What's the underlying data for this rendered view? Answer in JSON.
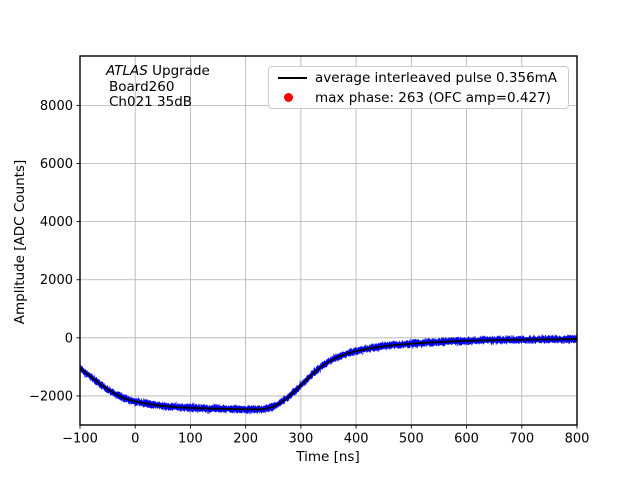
{
  "figure": {
    "background": "#ffffff"
  },
  "annotation": {
    "experiment": "ATLAS",
    "line1_rest": " Upgrade",
    "line2": "Board260",
    "line3": "Ch021 35dB"
  },
  "chart_data": {
    "type": "line",
    "title": "",
    "xlabel": "Time [ns]",
    "ylabel": "Amplitude [ADC Counts]",
    "xlim": [
      -100,
      800
    ],
    "ylim": [
      -3000,
      9700
    ],
    "xticks": [
      -100,
      0,
      100,
      200,
      300,
      400,
      500,
      600,
      700,
      800
    ],
    "yticks": [
      -2000,
      0,
      2000,
      4000,
      6000,
      8000
    ],
    "grid": true,
    "legend_position": "upper right",
    "legend": {
      "entries": [
        {
          "marker": "line",
          "color": "#000000",
          "label": "average interleaved pulse 0.356mA"
        },
        {
          "marker": "dot",
          "color": "#ff0000",
          "label": "max phase: 263 (OFC amp=0.427)"
        }
      ]
    },
    "colors": {
      "grid": "#b0b0b0",
      "spine": "#000000",
      "band": "#0000f2",
      "average": "#000000"
    },
    "series": [
      {
        "name": "interleaved pulse samples",
        "style": "noisy-band",
        "color": "#0000f2",
        "noise_halfwidth_counts": 140
      },
      {
        "name": "average interleaved pulse",
        "style": "line",
        "color": "#000000"
      }
    ],
    "pulse_points": [
      [
        -100,
        -1050
      ],
      [
        -90,
        -1200
      ],
      [
        -80,
        -1350
      ],
      [
        -70,
        -1500
      ],
      [
        -60,
        -1640
      ],
      [
        -50,
        -1770
      ],
      [
        -40,
        -1890
      ],
      [
        -30,
        -1990
      ],
      [
        -20,
        -2080
      ],
      [
        -10,
        -2140
      ],
      [
        0,
        -2190
      ],
      [
        20,
        -2265
      ],
      [
        40,
        -2320
      ],
      [
        60,
        -2360
      ],
      [
        80,
        -2390
      ],
      [
        100,
        -2410
      ],
      [
        130,
        -2430
      ],
      [
        160,
        -2445
      ],
      [
        190,
        -2455
      ],
      [
        215,
        -2462
      ],
      [
        228,
        -2458
      ],
      [
        238,
        -2430
      ],
      [
        248,
        -2380
      ],
      [
        258,
        -2290
      ],
      [
        268,
        -2170
      ],
      [
        278,
        -2020
      ],
      [
        288,
        -1850
      ],
      [
        298,
        -1670
      ],
      [
        308,
        -1480
      ],
      [
        318,
        -1300
      ],
      [
        328,
        -1130
      ],
      [
        338,
        -975
      ],
      [
        348,
        -845
      ],
      [
        358,
        -740
      ],
      [
        368,
        -650
      ],
      [
        378,
        -575
      ],
      [
        388,
        -515
      ],
      [
        398,
        -465
      ],
      [
        415,
        -395
      ],
      [
        430,
        -345
      ],
      [
        450,
        -290
      ],
      [
        470,
        -248
      ],
      [
        490,
        -215
      ],
      [
        510,
        -188
      ],
      [
        540,
        -152
      ],
      [
        570,
        -125
      ],
      [
        600,
        -103
      ],
      [
        650,
        -78
      ],
      [
        700,
        -62
      ],
      [
        750,
        -52
      ],
      [
        800,
        -45
      ]
    ]
  }
}
